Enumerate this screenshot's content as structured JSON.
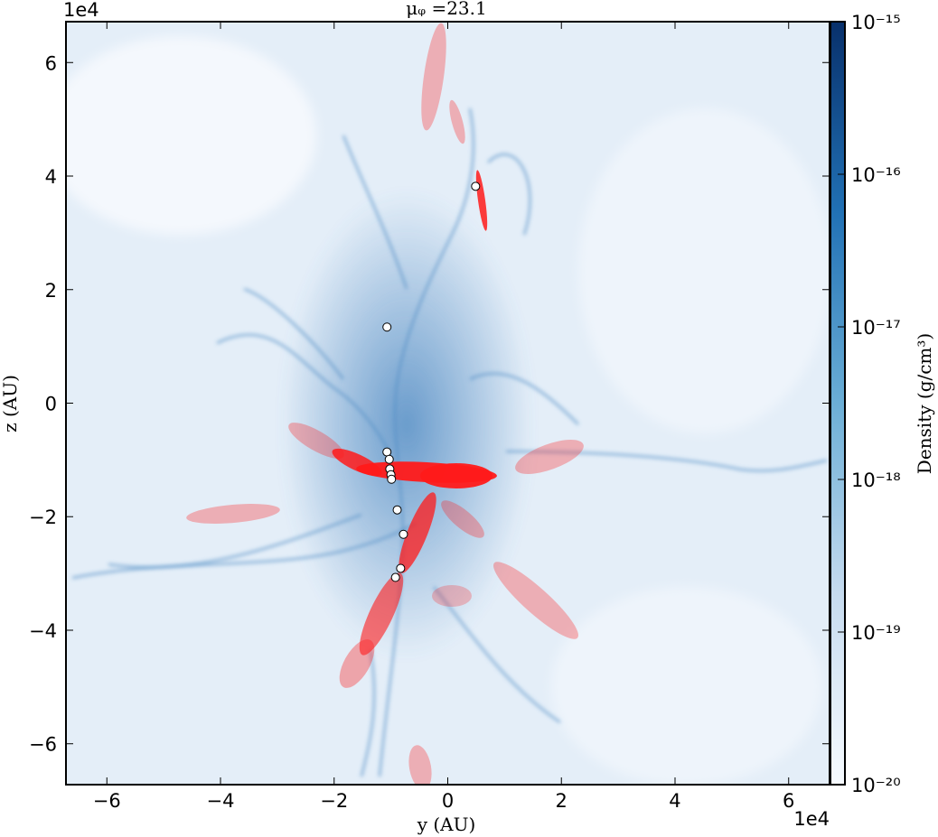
{
  "chart_data": {
    "type": "scatter",
    "title": "μᵩ =23.1",
    "x_label": "y  (AU)",
    "y_label": "z  (AU)",
    "x_offset": "1e4",
    "y_offset": "1e4",
    "xlim": [
      -6.72,
      6.72
    ],
    "ylim": [
      -6.72,
      6.72
    ],
    "xticks": [
      {
        "value": -6,
        "label": "−6"
      },
      {
        "value": -4,
        "label": "−4"
      },
      {
        "value": -2,
        "label": "−2"
      },
      0,
      2,
      4,
      6
    ],
    "yticks": [
      {
        "value": -6,
        "label": "−6"
      },
      {
        "value": -4,
        "label": "−4"
      },
      {
        "value": -2,
        "label": "−2"
      },
      0,
      2,
      4,
      6
    ],
    "series": [
      {
        "color": "#ffffff",
        "x": [
          0.49,
          -1.07,
          -1.07,
          -1.03,
          -1.02,
          -1.0,
          -0.99,
          -0.89,
          -0.78,
          -0.83,
          -0.92
        ],
        "values": [
          3.82,
          1.34,
          -0.86,
          -0.99,
          -1.16,
          -1.26,
          -1.34,
          -1.88,
          -2.31,
          -2.91,
          -3.07
        ]
      }
    ],
    "colorbar": {
      "label": "Density  (g/cm³)",
      "log": true,
      "lim": [
        1e-20,
        1e-15
      ],
      "colors": [
        "#f7fbff",
        "#c6dbef",
        "#6baed6",
        "#2171b5",
        "#08306b"
      ],
      "ticks": [
        {
          "value": 1e-20,
          "label": "10⁻²⁰"
        },
        {
          "value": 1e-19,
          "label": "10⁻¹⁹"
        },
        {
          "value": 1e-18,
          "label": "10⁻¹⁸"
        },
        {
          "value": 1e-17,
          "label": "10⁻¹⁷"
        },
        {
          "value": 1e-16,
          "label": "10⁻¹⁶"
        },
        {
          "value": 1e-15,
          "label": "10⁻¹⁵"
        }
      ]
    }
  }
}
